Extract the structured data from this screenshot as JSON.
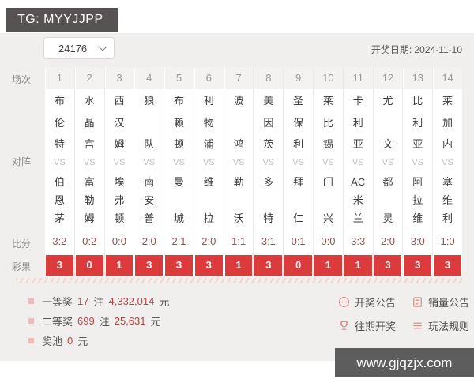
{
  "header": {
    "tg": "TG: MYYJJPP",
    "issue": "24176",
    "draw_date": "开奖日期: 2024-11-10"
  },
  "row_labels": {
    "session": "场次",
    "matchup": "对阵",
    "score": "比分",
    "result": "彩果"
  },
  "vs": "VS",
  "matches": [
    {
      "no": "1",
      "home": "布伦特",
      "away": "伯恩茅",
      "score": "3:2",
      "result": "3"
    },
    {
      "no": "2",
      "home": "水晶宫",
      "away": "富勒姆",
      "score": "0:2",
      "result": "0"
    },
    {
      "no": "3",
      "home": "西汉姆",
      "away": "埃弗顿",
      "score": "0:0",
      "result": "1"
    },
    {
      "no": "4",
      "home": "狼队",
      "away": "南安普",
      "score": "2:0",
      "result": "3"
    },
    {
      "no": "5",
      "home": "布赖顿",
      "away": "曼城",
      "score": "2:1",
      "result": "3"
    },
    {
      "no": "6",
      "home": "利物浦",
      "away": "维拉",
      "score": "2:0",
      "result": "3"
    },
    {
      "no": "7",
      "home": "波鸿",
      "away": "勒沃",
      "score": "1:1",
      "result": "1"
    },
    {
      "no": "8",
      "home": "美因茨",
      "away": "多特",
      "score": "3:1",
      "result": "3"
    },
    {
      "no": "9",
      "home": "圣保利",
      "away": "拜仁",
      "score": "0:1",
      "result": "0"
    },
    {
      "no": "10",
      "home": "莱比锡",
      "away": "门兴",
      "score": "0:0",
      "result": "1"
    },
    {
      "no": "11",
      "home": "卡利亚",
      "away": "AC米兰",
      "score": "3:3",
      "result": "1"
    },
    {
      "no": "12",
      "home": "尤文",
      "away": "都灵",
      "score": "2:0",
      "result": "3"
    },
    {
      "no": "13",
      "home": "比利亚",
      "away": "阿拉维",
      "score": "3:0",
      "result": "3"
    },
    {
      "no": "14",
      "home": "莱加内",
      "away": "塞维利",
      "score": "1:0",
      "result": "3"
    }
  ],
  "prizes": [
    {
      "label": "一等奖",
      "count": "17",
      "count_unit": "注",
      "amount": "4,332,014",
      "amount_unit": "元"
    },
    {
      "label": "二等奖",
      "count": "699",
      "count_unit": "注",
      "amount": "25,631",
      "amount_unit": "元"
    },
    {
      "label": "奖池",
      "count": "0",
      "count_unit": "元",
      "amount": "",
      "amount_unit": ""
    }
  ],
  "links": [
    {
      "label": "开奖公告",
      "icon": "announcement-icon"
    },
    {
      "label": "销量公告",
      "icon": "sales-report-icon"
    },
    {
      "label": "往期开奖",
      "icon": "trophy-icon"
    },
    {
      "label": "玩法规则",
      "icon": "rules-icon"
    }
  ],
  "watermark": "www.gjqzjx.com",
  "colors": {
    "result_red": "#dc3b3b",
    "score_text": "#96504e",
    "prize_number": "#b84444",
    "icon_pink": "#cf8a84",
    "dark_box": "#585353",
    "page_bg": "#f1eeee"
  }
}
